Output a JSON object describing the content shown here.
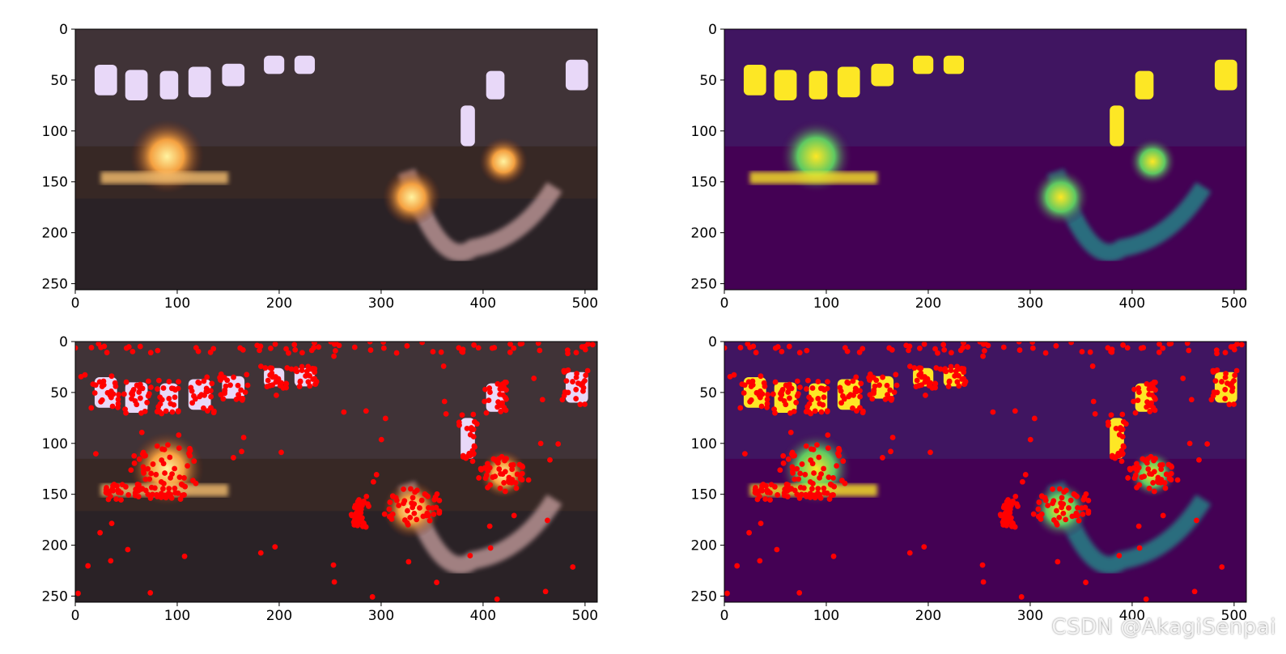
{
  "chart_data": [
    {
      "type": "image",
      "panel": "top-left",
      "colormap": "rgb",
      "xlim": [
        0,
        512
      ],
      "ylim": [
        256,
        0
      ],
      "xticks": [
        0,
        100,
        200,
        300,
        400,
        500
      ],
      "yticks": [
        0,
        50,
        100,
        150,
        200,
        250
      ]
    },
    {
      "type": "image",
      "panel": "top-right",
      "colormap": "viridis",
      "xlim": [
        0,
        512
      ],
      "ylim": [
        256,
        0
      ],
      "xticks": [
        0,
        100,
        200,
        300,
        400,
        500
      ],
      "yticks": [
        0,
        50,
        100,
        150,
        200,
        250
      ]
    },
    {
      "type": "scatter",
      "panel": "bottom-left",
      "background": "rgb image",
      "marker_color": "#ff0000",
      "xlim": [
        0,
        512
      ],
      "ylim": [
        256,
        0
      ],
      "xticks": [
        0,
        100,
        200,
        300,
        400,
        500
      ],
      "yticks": [
        0,
        50,
        100,
        150,
        200,
        250
      ],
      "approx_point_count": 600
    },
    {
      "type": "scatter",
      "panel": "bottom-right",
      "background": "viridis image",
      "marker_color": "#ff0000",
      "xlim": [
        0,
        512
      ],
      "ylim": [
        256,
        0
      ],
      "xticks": [
        0,
        100,
        200,
        300,
        400,
        500
      ],
      "yticks": [
        0,
        50,
        100,
        150,
        200,
        250
      ],
      "approx_point_count": 600
    }
  ],
  "colors": {
    "rgb_dark": "#2a2226",
    "viridis_dark": "#440154",
    "viridis_yellow": "#fde725",
    "viridis_teal": "#21918c",
    "marker": "#ff0000"
  },
  "watermark": "CSDN @AkagiSenpai"
}
